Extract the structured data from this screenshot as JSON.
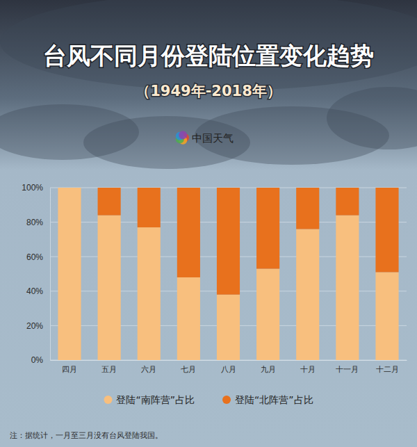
{
  "chart_data": {
    "type": "bar",
    "title": "台风不同月份登陆位置变化趋势",
    "subtitle": "（1949年-2018年）",
    "annotations": [
      "中国天气",
      "注：据统计，一月至三月没有台风登陆我国。"
    ],
    "categories": [
      "四月",
      "五月",
      "六月",
      "七月",
      "八月",
      "九月",
      "十月",
      "十一月",
      "十二月"
    ],
    "series": [
      {
        "name": "登陆“南阵营”占比",
        "color": "#f8bf7e",
        "values": [
          100,
          84,
          77,
          48,
          38,
          53,
          76,
          84,
          51
        ]
      },
      {
        "name": "登陆“北阵营”占比",
        "color": "#e8711d",
        "values": [
          0,
          16,
          23,
          52,
          62,
          47,
          24,
          16,
          49
        ]
      }
    ],
    "stacked": true,
    "ylim": [
      0,
      100
    ],
    "yticks": [
      {
        "value": 0,
        "label": "0%"
      },
      {
        "value": 20,
        "label": "20%"
      },
      {
        "value": 40,
        "label": "40%"
      },
      {
        "value": 60,
        "label": "60%"
      },
      {
        "value": 80,
        "label": "80%"
      },
      {
        "value": 100,
        "label": "100%"
      }
    ],
    "grid": true,
    "legend": "bottom"
  }
}
